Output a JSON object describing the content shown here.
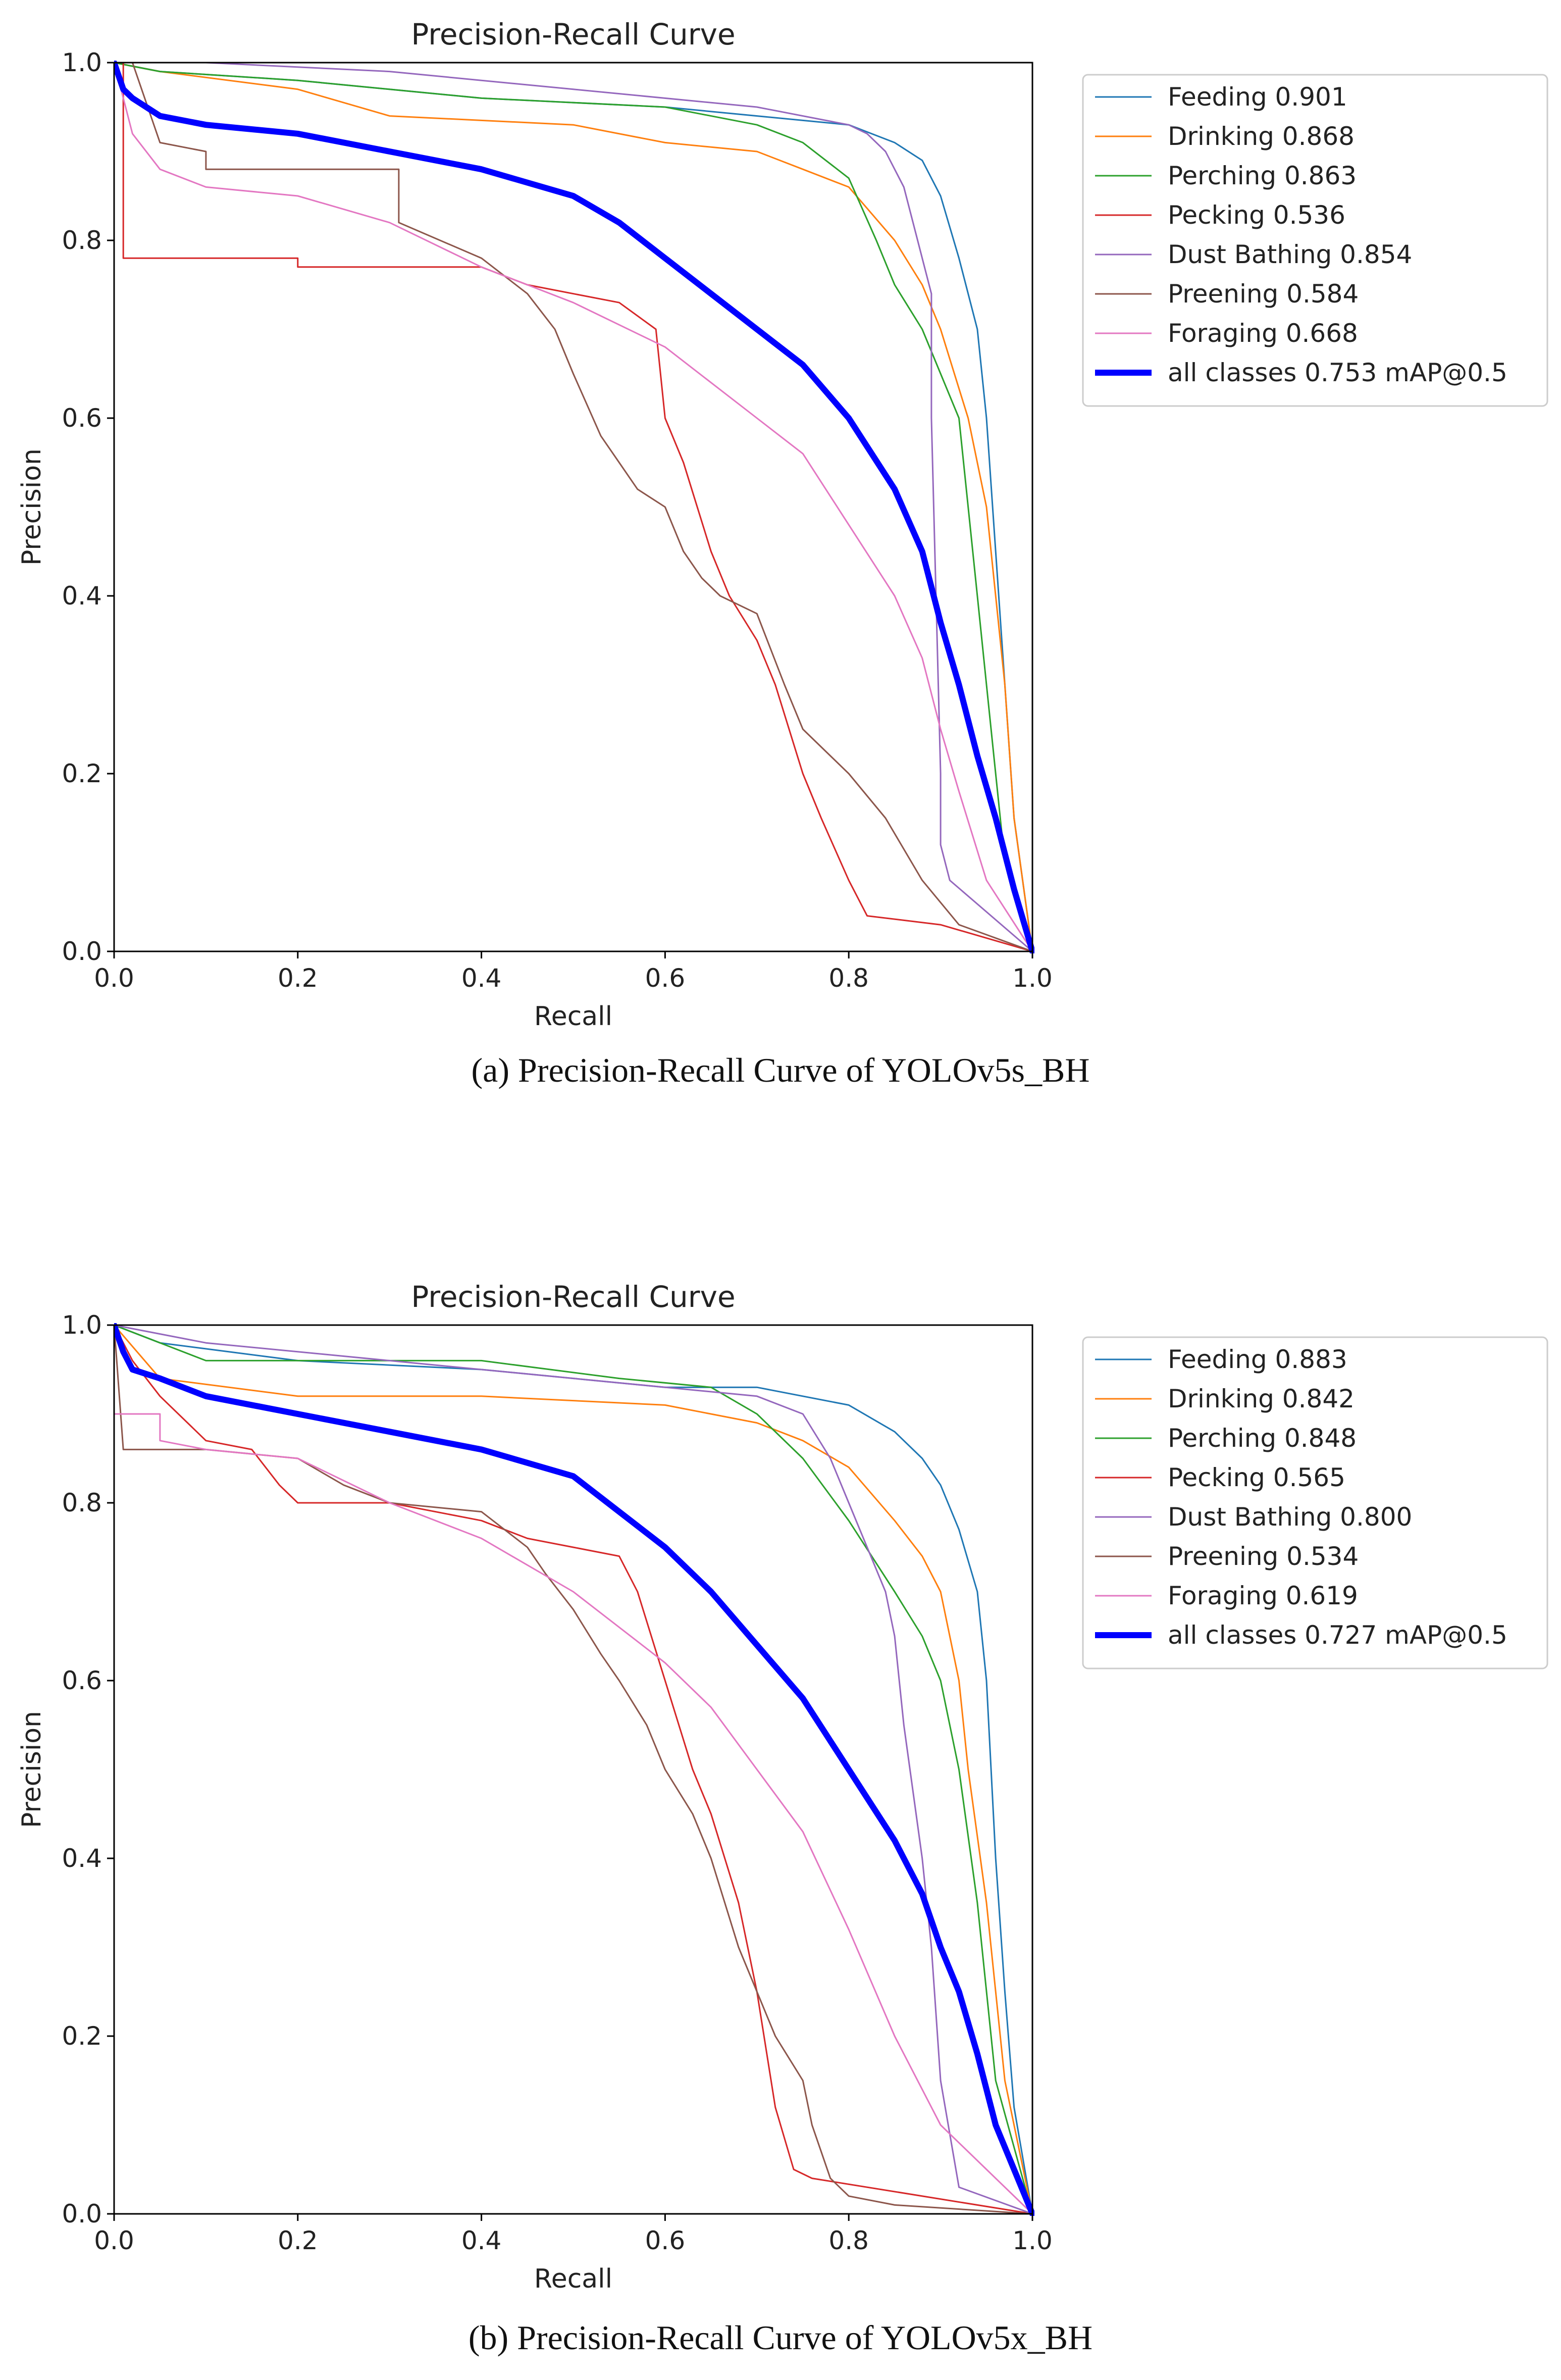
{
  "figure": {
    "captions": [
      "(a) Precision-Recall Curve of YOLOv5s_BH",
      "(b) Precision-Recall Curve of YOLOv5x_BH"
    ]
  },
  "chart_data": [
    {
      "type": "line",
      "title": "Precision-Recall Curve",
      "xlabel": "Recall",
      "ylabel": "Precision",
      "xlim": [
        0,
        1
      ],
      "ylim": [
        0,
        1
      ],
      "xticks": [
        "0.0",
        "0.2",
        "0.4",
        "0.6",
        "0.8",
        "1.0"
      ],
      "yticks": [
        "0.0",
        "0.2",
        "0.4",
        "0.6",
        "0.8",
        "1.0"
      ],
      "legend_position": "outside-right",
      "series": [
        {
          "name": "Feeding 0.901",
          "color": "#1f77b4",
          "width": 1,
          "x": [
            0,
            0.05,
            0.2,
            0.4,
            0.6,
            0.7,
            0.8,
            0.85,
            0.88,
            0.9,
            0.92,
            0.94,
            0.95,
            0.96,
            0.97,
            0.98,
            1.0
          ],
          "y": [
            1,
            0.99,
            0.98,
            0.96,
            0.95,
            0.94,
            0.93,
            0.91,
            0.89,
            0.85,
            0.78,
            0.7,
            0.6,
            0.45,
            0.3,
            0.15,
            0
          ]
        },
        {
          "name": "Drinking 0.868",
          "color": "#ff7f0e",
          "width": 1,
          "x": [
            0,
            0.05,
            0.2,
            0.3,
            0.5,
            0.6,
            0.7,
            0.75,
            0.8,
            0.85,
            0.88,
            0.9,
            0.93,
            0.95,
            0.96,
            0.97,
            0.98,
            1.0
          ],
          "y": [
            1,
            0.99,
            0.97,
            0.94,
            0.93,
            0.91,
            0.9,
            0.88,
            0.86,
            0.8,
            0.75,
            0.7,
            0.6,
            0.5,
            0.4,
            0.3,
            0.15,
            0
          ]
        },
        {
          "name": "Perching 0.863",
          "color": "#2ca02c",
          "width": 1,
          "x": [
            0,
            0.05,
            0.2,
            0.4,
            0.6,
            0.7,
            0.75,
            0.8,
            0.83,
            0.85,
            0.88,
            0.9,
            0.92,
            0.93,
            0.94,
            0.95,
            0.97,
            1.0
          ],
          "y": [
            1,
            0.99,
            0.98,
            0.96,
            0.95,
            0.93,
            0.91,
            0.87,
            0.8,
            0.75,
            0.7,
            0.65,
            0.6,
            0.5,
            0.4,
            0.3,
            0.1,
            0
          ]
        },
        {
          "name": "Pecking 0.536",
          "color": "#d62728",
          "width": 1,
          "x": [
            0,
            0.01,
            0.01,
            0.2,
            0.2,
            0.4,
            0.45,
            0.55,
            0.59,
            0.6,
            0.62,
            0.65,
            0.67,
            0.7,
            0.72,
            0.75,
            0.77,
            0.8,
            0.82,
            0.9,
            1.0
          ],
          "y": [
            1,
            1,
            0.78,
            0.78,
            0.77,
            0.77,
            0.75,
            0.73,
            0.7,
            0.6,
            0.55,
            0.45,
            0.4,
            0.35,
            0.3,
            0.2,
            0.15,
            0.08,
            0.04,
            0.03,
            0
          ]
        },
        {
          "name": "Dust Bathing 0.854",
          "color": "#9467bd",
          "width": 1,
          "x": [
            0,
            0.1,
            0.3,
            0.5,
            0.7,
            0.8,
            0.82,
            0.84,
            0.86,
            0.87,
            0.88,
            0.89,
            0.89,
            0.9,
            0.9,
            0.91,
            1.0
          ],
          "y": [
            1,
            1,
            0.99,
            0.97,
            0.95,
            0.93,
            0.92,
            0.9,
            0.86,
            0.82,
            0.78,
            0.74,
            0.6,
            0.2,
            0.12,
            0.08,
            0
          ]
        },
        {
          "name": "Preening 0.584",
          "color": "#8c564b",
          "width": 1,
          "x": [
            0,
            0.02,
            0.05,
            0.1,
            0.1,
            0.31,
            0.31,
            0.4,
            0.45,
            0.48,
            0.5,
            0.53,
            0.55,
            0.57,
            0.6,
            0.62,
            0.64,
            0.66,
            0.7,
            0.73,
            0.75,
            0.8,
            0.84,
            0.88,
            0.92,
            1.0
          ],
          "y": [
            1,
            1,
            0.91,
            0.9,
            0.88,
            0.88,
            0.82,
            0.78,
            0.74,
            0.7,
            0.65,
            0.58,
            0.55,
            0.52,
            0.5,
            0.45,
            0.42,
            0.4,
            0.38,
            0.3,
            0.25,
            0.2,
            0.15,
            0.08,
            0.03,
            0
          ]
        },
        {
          "name": "Foraging 0.668",
          "color": "#e377c2",
          "width": 1,
          "x": [
            0,
            0.02,
            0.05,
            0.1,
            0.2,
            0.3,
            0.4,
            0.5,
            0.6,
            0.7,
            0.75,
            0.8,
            0.85,
            0.88,
            0.9,
            0.92,
            0.95,
            1.0
          ],
          "y": [
            1,
            0.92,
            0.88,
            0.86,
            0.85,
            0.82,
            0.77,
            0.73,
            0.68,
            0.6,
            0.56,
            0.48,
            0.4,
            0.33,
            0.25,
            0.18,
            0.08,
            0
          ]
        },
        {
          "name": "all classes 0.753 mAP@0.5",
          "color": "#0000ff",
          "width": 4,
          "x": [
            0,
            0.01,
            0.02,
            0.05,
            0.1,
            0.2,
            0.3,
            0.4,
            0.5,
            0.55,
            0.6,
            0.65,
            0.7,
            0.75,
            0.8,
            0.85,
            0.88,
            0.9,
            0.92,
            0.94,
            0.96,
            0.98,
            1.0
          ],
          "y": [
            1,
            0.97,
            0.96,
            0.94,
            0.93,
            0.92,
            0.9,
            0.88,
            0.85,
            0.82,
            0.78,
            0.74,
            0.7,
            0.66,
            0.6,
            0.52,
            0.45,
            0.37,
            0.3,
            0.22,
            0.15,
            0.07,
            0
          ]
        }
      ]
    },
    {
      "type": "line",
      "title": "Precision-Recall Curve",
      "xlabel": "Recall",
      "ylabel": "Precision",
      "xlim": [
        0,
        1
      ],
      "ylim": [
        0,
        1
      ],
      "xticks": [
        "0.0",
        "0.2",
        "0.4",
        "0.6",
        "0.8",
        "1.0"
      ],
      "yticks": [
        "0.0",
        "0.2",
        "0.4",
        "0.6",
        "0.8",
        "1.0"
      ],
      "legend_position": "outside-right",
      "series": [
        {
          "name": "Feeding 0.883",
          "color": "#1f77b4",
          "width": 1,
          "x": [
            0,
            0.05,
            0.2,
            0.4,
            0.6,
            0.7,
            0.8,
            0.85,
            0.88,
            0.9,
            0.92,
            0.94,
            0.95,
            0.96,
            0.97,
            0.98,
            1.0
          ],
          "y": [
            1,
            0.98,
            0.96,
            0.95,
            0.93,
            0.93,
            0.91,
            0.88,
            0.85,
            0.82,
            0.77,
            0.7,
            0.6,
            0.4,
            0.25,
            0.12,
            0
          ]
        },
        {
          "name": "Drinking 0.842",
          "color": "#ff7f0e",
          "width": 1,
          "x": [
            0,
            0.05,
            0.2,
            0.4,
            0.6,
            0.7,
            0.75,
            0.8,
            0.85,
            0.88,
            0.9,
            0.92,
            0.93,
            0.95,
            0.97,
            1.0
          ],
          "y": [
            1,
            0.94,
            0.92,
            0.92,
            0.91,
            0.89,
            0.87,
            0.84,
            0.78,
            0.74,
            0.7,
            0.6,
            0.5,
            0.35,
            0.15,
            0
          ]
        },
        {
          "name": "Perching 0.848",
          "color": "#2ca02c",
          "width": 1,
          "x": [
            0,
            0.1,
            0.2,
            0.4,
            0.55,
            0.65,
            0.7,
            0.75,
            0.8,
            0.85,
            0.88,
            0.9,
            0.92,
            0.94,
            0.96,
            1.0
          ],
          "y": [
            1,
            0.96,
            0.96,
            0.96,
            0.94,
            0.93,
            0.9,
            0.85,
            0.78,
            0.7,
            0.65,
            0.6,
            0.5,
            0.35,
            0.15,
            0
          ]
        },
        {
          "name": "Pecking 0.565",
          "color": "#d62728",
          "width": 1,
          "x": [
            0,
            0.02,
            0.05,
            0.1,
            0.15,
            0.18,
            0.2,
            0.3,
            0.4,
            0.45,
            0.5,
            0.55,
            0.57,
            0.6,
            0.63,
            0.65,
            0.68,
            0.7,
            0.72,
            0.74,
            0.76,
            1.0
          ],
          "y": [
            1,
            0.96,
            0.92,
            0.87,
            0.86,
            0.82,
            0.8,
            0.8,
            0.78,
            0.76,
            0.75,
            0.74,
            0.7,
            0.6,
            0.5,
            0.45,
            0.35,
            0.25,
            0.12,
            0.05,
            0.04,
            0
          ]
        },
        {
          "name": "Dust Bathing 0.800",
          "color": "#9467bd",
          "width": 1,
          "x": [
            0,
            0.1,
            0.3,
            0.5,
            0.7,
            0.75,
            0.78,
            0.8,
            0.82,
            0.84,
            0.85,
            0.86,
            0.88,
            0.89,
            0.9,
            0.92,
            1.0
          ],
          "y": [
            1,
            0.98,
            0.96,
            0.94,
            0.92,
            0.9,
            0.85,
            0.8,
            0.75,
            0.7,
            0.65,
            0.55,
            0.4,
            0.3,
            0.15,
            0.03,
            0
          ]
        },
        {
          "name": "Preening 0.534",
          "color": "#8c564b",
          "width": 1,
          "x": [
            0,
            0.01,
            0.1,
            0.2,
            0.25,
            0.3,
            0.4,
            0.45,
            0.47,
            0.5,
            0.53,
            0.55,
            0.58,
            0.6,
            0.63,
            0.65,
            0.68,
            0.7,
            0.72,
            0.75,
            0.76,
            0.78,
            0.8,
            0.85,
            1.0
          ],
          "y": [
            1,
            0.86,
            0.86,
            0.85,
            0.82,
            0.8,
            0.79,
            0.75,
            0.72,
            0.68,
            0.63,
            0.6,
            0.55,
            0.5,
            0.45,
            0.4,
            0.3,
            0.25,
            0.2,
            0.15,
            0.1,
            0.04,
            0.02,
            0.01,
            0
          ]
        },
        {
          "name": "Foraging 0.619",
          "color": "#e377c2",
          "width": 1,
          "x": [
            0,
            0.05,
            0.05,
            0.1,
            0.2,
            0.3,
            0.4,
            0.5,
            0.6,
            0.65,
            0.7,
            0.75,
            0.8,
            0.85,
            0.9,
            0.95,
            1.0
          ],
          "y": [
            0.9,
            0.9,
            0.87,
            0.86,
            0.85,
            0.8,
            0.76,
            0.7,
            0.62,
            0.57,
            0.5,
            0.43,
            0.32,
            0.2,
            0.1,
            0.05,
            0
          ]
        },
        {
          "name": "all classes 0.727 mAP@0.5",
          "color": "#0000ff",
          "width": 4,
          "x": [
            0,
            0.01,
            0.02,
            0.05,
            0.1,
            0.2,
            0.3,
            0.4,
            0.5,
            0.55,
            0.6,
            0.65,
            0.7,
            0.75,
            0.8,
            0.85,
            0.88,
            0.9,
            0.92,
            0.94,
            0.96,
            0.98,
            1.0
          ],
          "y": [
            1,
            0.97,
            0.95,
            0.94,
            0.92,
            0.9,
            0.88,
            0.86,
            0.83,
            0.79,
            0.75,
            0.7,
            0.64,
            0.58,
            0.5,
            0.42,
            0.36,
            0.3,
            0.25,
            0.18,
            0.1,
            0.05,
            0
          ]
        }
      ]
    }
  ]
}
